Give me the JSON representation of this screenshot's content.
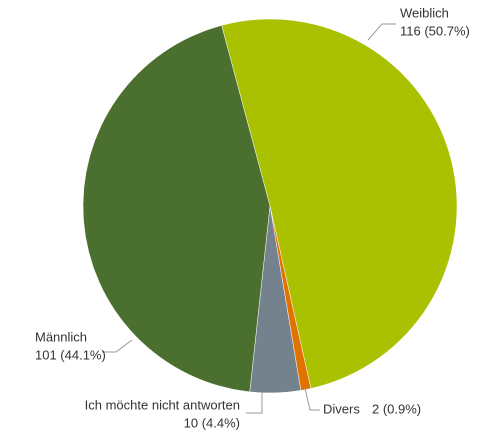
{
  "chart_data": {
    "type": "pie",
    "categories": [
      "Weiblich",
      "Divers",
      "Ich möchte nicht antworten",
      "Männlich"
    ],
    "values": [
      116,
      2,
      10,
      101
    ],
    "value_labels": [
      "116 (50.7%)",
      "2 (0.9%)",
      "10 (4.4%)",
      "101 (44.1%)"
    ],
    "colors": [
      "#a9c100",
      "#e07200",
      "#74828e",
      "#4b6f2f"
    ]
  }
}
